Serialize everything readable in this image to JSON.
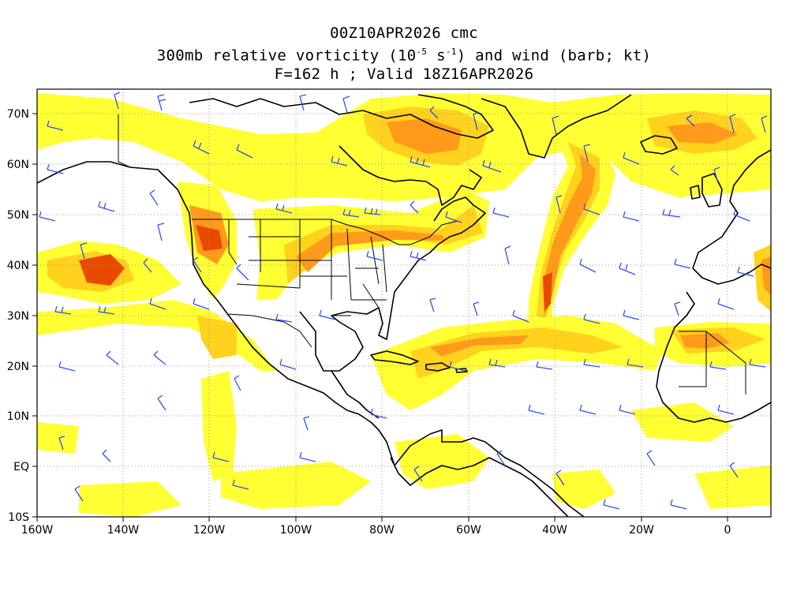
{
  "title": {
    "line1": "00Z10APR2026 cmc",
    "line2_pre": "300mb relative vorticity (10",
    "line2_exp1": "-5",
    "line2_mid": " s",
    "line2_exp2": "-1",
    "line2_post": ") and wind (barb; kt)",
    "line3": "F=162 h ; Valid 18Z16APR2026"
  },
  "axes": {
    "lon_labels": [
      "160W",
      "140W",
      "120W",
      "100W",
      "80W",
      "60W",
      "40W",
      "20W",
      "0"
    ],
    "lat_labels": [
      "70N",
      "60N",
      "50N",
      "40N",
      "30N",
      "20N",
      "10N",
      "EQ",
      "10S"
    ],
    "lon_range": [
      -160,
      10
    ],
    "lat_range": [
      -10,
      75
    ],
    "grid": "dotted"
  },
  "colors": {
    "vort_low": "#ffff33",
    "vort_mid": "#ffd21e",
    "vort_high": "#ff9a1a",
    "vort_max": "#e84a00",
    "coast": "#000000",
    "barbs": "#2f4fff"
  }
}
